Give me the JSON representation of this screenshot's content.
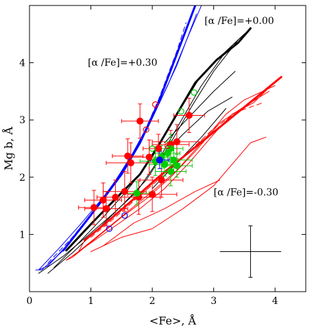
{
  "chart_data": {
    "type": "scatter",
    "title": "",
    "xlabel": "<Fe>, Å",
    "ylabel": "Mg b, Å",
    "xlim": [
      0,
      4.5
    ],
    "ylim": [
      0,
      5
    ],
    "xticks": [
      0,
      1,
      2,
      3,
      4
    ],
    "yticks": [
      1,
      2,
      3,
      4
    ],
    "xtick_labels": [
      "0",
      "1",
      "2",
      "3",
      "4"
    ],
    "ytick_labels": [
      "1",
      "2",
      "3",
      "4"
    ],
    "grid": false,
    "legend": "none",
    "annotations": [
      {
        "text": "[α /Fe]=+0.00",
        "x": 2.85,
        "y": 4.68
      },
      {
        "text": "[α /Fe]=+0.30",
        "x": 0.95,
        "y": 3.95
      },
      {
        "text": "[α /Fe]=-0.30",
        "x": 3.0,
        "y": 1.68
      }
    ],
    "typical_error": {
      "x": 3.6,
      "y": 0.7,
      "xerr": 0.5,
      "yerr": 0.45
    },
    "models": [
      {
        "group": "alpha_+0.30",
        "color": "#0000ff",
        "lines": [
          {
            "thick": true,
            "dash": false,
            "points": [
              [
                0.55,
                0.72
              ],
              [
                0.9,
                1.2
              ],
              [
                1.2,
                1.62
              ],
              [
                1.5,
                2.05
              ],
              [
                1.8,
                2.6
              ],
              [
                2.1,
                3.3
              ],
              [
                2.4,
                4.15
              ],
              [
                2.7,
                5.0
              ]
            ]
          },
          {
            "thick": false,
            "dash": false,
            "points": [
              [
                0.15,
                0.38
              ],
              [
                0.5,
                0.78
              ],
              [
                0.85,
                1.2
              ],
              [
                1.2,
                1.65
              ],
              [
                1.55,
                2.15
              ],
              [
                1.9,
                2.8
              ],
              [
                2.25,
                3.6
              ],
              [
                2.6,
                4.5
              ],
              [
                2.8,
                5.0
              ]
            ]
          },
          {
            "thick": false,
            "dash": false,
            "points": [
              [
                0.3,
                0.45
              ],
              [
                0.65,
                0.85
              ],
              [
                1.0,
                1.32
              ],
              [
                1.35,
                1.85
              ],
              [
                1.7,
                2.45
              ],
              [
                2.05,
                3.15
              ],
              [
                2.4,
                3.95
              ],
              [
                2.72,
                4.85
              ]
            ]
          },
          {
            "thick": false,
            "dash": false,
            "points": [
              [
                0.6,
                0.8
              ],
              [
                0.95,
                1.28
              ],
              [
                1.3,
                1.78
              ],
              [
                1.62,
                2.3
              ],
              [
                1.95,
                2.95
              ],
              [
                2.28,
                3.8
              ],
              [
                2.6,
                4.7
              ],
              [
                2.7,
                5.0
              ]
            ]
          },
          {
            "thick": false,
            "dash": true,
            "points": [
              [
                0.3,
                0.5
              ],
              [
                0.7,
                0.95
              ],
              [
                1.1,
                1.48
              ],
              [
                1.45,
                2.0
              ],
              [
                1.8,
                2.62
              ],
              [
                2.1,
                3.35
              ],
              [
                2.4,
                4.2
              ],
              [
                2.55,
                4.7
              ]
            ]
          },
          {
            "thick": false,
            "dash": false,
            "points": [
              [
                0.1,
                0.38
              ],
              [
                0.2,
                0.38
              ],
              [
                0.55,
                0.72
              ],
              [
                0.6,
                0.8
              ],
              [
                0.3,
                0.45
              ],
              [
                0.15,
                0.38
              ]
            ]
          }
        ]
      },
      {
        "group": "alpha_+0.00",
        "color": "#000000",
        "lines": [
          {
            "thick": true,
            "dash": false,
            "points": [
              [
                0.6,
                0.72
              ],
              [
                1.0,
                1.18
              ],
              [
                1.4,
                1.62
              ],
              [
                1.8,
                2.05
              ],
              [
                2.1,
                2.55
              ],
              [
                2.4,
                3.1
              ],
              [
                2.7,
                3.65
              ],
              [
                3.05,
                4.05
              ],
              [
                3.4,
                4.35
              ],
              [
                3.6,
                4.6
              ]
            ]
          },
          {
            "thick": false,
            "dash": false,
            "points": [
              [
                0.15,
                0.32
              ],
              [
                0.55,
                0.62
              ],
              [
                0.95,
                0.98
              ],
              [
                1.35,
                1.35
              ],
              [
                1.75,
                1.75
              ],
              [
                2.1,
                2.3
              ],
              [
                2.45,
                2.95
              ],
              [
                2.8,
                3.6
              ],
              [
                3.2,
                4.2
              ],
              [
                3.6,
                4.6
              ]
            ]
          },
          {
            "thick": false,
            "dash": false,
            "points": [
              [
                0.3,
                0.32
              ],
              [
                0.7,
                0.68
              ],
              [
                1.1,
                1.08
              ],
              [
                1.5,
                1.5
              ],
              [
                1.9,
                1.95
              ],
              [
                2.3,
                2.6
              ],
              [
                2.65,
                3.25
              ],
              [
                3.0,
                3.85
              ],
              [
                3.4,
                4.4
              ]
            ]
          },
          {
            "thick": false,
            "dash": false,
            "points": [
              [
                0.4,
                0.42
              ],
              [
                0.8,
                0.85
              ],
              [
                1.2,
                1.3
              ],
              [
                1.6,
                1.78
              ],
              [
                2.0,
                2.35
              ],
              [
                2.35,
                3.0
              ],
              [
                2.75,
                3.7
              ],
              [
                3.1,
                4.1
              ],
              [
                3.5,
                4.5
              ]
            ]
          },
          {
            "thick": false,
            "dash": false,
            "points": [
              [
                2.0,
                1.8
              ],
              [
                2.4,
                2.25
              ],
              [
                2.8,
                2.7
              ],
              [
                3.2,
                3.2
              ]
            ]
          },
          {
            "thick": false,
            "dash": false,
            "points": [
              [
                2.1,
                2.3
              ],
              [
                2.5,
                2.75
              ],
              [
                2.9,
                3.15
              ],
              [
                3.3,
                3.4
              ]
            ]
          },
          {
            "thick": false,
            "dash": false,
            "points": [
              [
                2.2,
                2.6
              ],
              [
                2.6,
                3.05
              ],
              [
                3.0,
                3.5
              ],
              [
                3.35,
                3.85
              ]
            ]
          }
        ]
      },
      {
        "group": "alpha_-0.30",
        "color": "#ff0000",
        "lines": [
          {
            "thick": true,
            "dash": false,
            "points": [
              [
                0.9,
                0.9
              ],
              [
                1.3,
                1.25
              ],
              [
                1.7,
                1.62
              ],
              [
                2.1,
                2.0
              ],
              [
                2.5,
                2.35
              ],
              [
                2.9,
                2.7
              ],
              [
                3.3,
                3.05
              ],
              [
                3.7,
                3.4
              ],
              [
                4.1,
                3.75
              ]
            ]
          },
          {
            "thick": false,
            "dash": false,
            "points": [
              [
                0.6,
                0.55
              ],
              [
                1.0,
                0.85
              ],
              [
                1.4,
                1.15
              ],
              [
                1.8,
                1.45
              ],
              [
                2.2,
                1.8
              ],
              [
                2.6,
                2.25
              ],
              [
                3.0,
                2.75
              ],
              [
                3.3,
                3.1
              ],
              [
                3.65,
                3.3
              ],
              [
                4.05,
                3.72
              ]
            ]
          },
          {
            "thick": false,
            "dash": false,
            "points": [
              [
                0.7,
                0.6
              ],
              [
                1.1,
                0.95
              ],
              [
                1.5,
                1.3
              ],
              [
                1.9,
                1.62
              ],
              [
                2.3,
                2.0
              ],
              [
                2.7,
                2.45
              ],
              [
                3.1,
                2.95
              ],
              [
                3.45,
                3.2
              ],
              [
                3.9,
                3.5
              ]
            ]
          },
          {
            "thick": false,
            "dash": false,
            "points": [
              [
                0.8,
                0.7
              ],
              [
                1.2,
                1.05
              ],
              [
                1.6,
                1.4
              ],
              [
                2.0,
                1.75
              ],
              [
                2.4,
                2.12
              ],
              [
                2.8,
                2.6
              ],
              [
                3.2,
                3.1
              ],
              [
                3.5,
                3.35
              ],
              [
                4.0,
                3.6
              ]
            ]
          },
          {
            "thick": false,
            "dash": true,
            "points": [
              [
                1.0,
                0.95
              ],
              [
                1.4,
                1.3
              ],
              [
                1.8,
                1.68
              ],
              [
                2.2,
                2.05
              ],
              [
                2.6,
                2.45
              ],
              [
                3.0,
                2.85
              ],
              [
                3.4,
                3.15
              ],
              [
                3.8,
                3.3
              ]
            ]
          },
          {
            "thick": false,
            "dash": false,
            "points": [
              [
                1.0,
                0.7
              ],
              [
                1.5,
                0.95
              ],
              [
                2.0,
                1.1
              ],
              [
                2.5,
                1.45
              ],
              [
                3.0,
                1.85
              ],
              [
                3.6,
                2.6
              ],
              [
                3.85,
                2.7
              ]
            ]
          },
          {
            "thick": false,
            "dash": false,
            "points": [
              [
                1.2,
                0.8
              ],
              [
                1.7,
                1.2
              ],
              [
                2.2,
                1.45
              ],
              [
                2.7,
                1.75
              ],
              [
                3.1,
                1.95
              ]
            ]
          },
          {
            "thick": false,
            "dash": false,
            "points": [
              [
                0.6,
                0.55
              ],
              [
                0.7,
                0.6
              ],
              [
                0.8,
                0.7
              ],
              [
                0.9,
                0.9
              ]
            ]
          }
        ]
      }
    ],
    "series": [
      {
        "name": "",
        "color": "#ff0000",
        "marker": "filled-circle",
        "points": [
          {
            "x": 1.05,
            "y": 1.47,
            "xerr": 0.25,
            "yerr": 0.3
          },
          {
            "x": 1.25,
            "y": 1.45,
            "xerr": 0.35,
            "yerr": 0.3
          },
          {
            "x": 1.4,
            "y": 1.65,
            "xerr": 0.3,
            "yerr": 0.3
          },
          {
            "x": 1.55,
            "y": 1.75,
            "xerr": 0.35,
            "yerr": 0.35
          },
          {
            "x": 1.6,
            "y": 2.37,
            "xerr": 0.25,
            "yerr": 0.3
          },
          {
            "x": 1.65,
            "y": 2.25,
            "xerr": 0.4,
            "yerr": 0.35
          },
          {
            "x": 1.8,
            "y": 2.98,
            "xerr": 0.3,
            "yerr": 0.3
          },
          {
            "x": 1.78,
            "y": 1.65,
            "xerr": 0.35,
            "yerr": 0.3
          },
          {
            "x": 1.95,
            "y": 2.35,
            "xerr": 0.3,
            "yerr": 0.3
          },
          {
            "x": 2.0,
            "y": 1.7,
            "xerr": 0.4,
            "yerr": 0.3
          },
          {
            "x": 2.1,
            "y": 2.5,
            "xerr": 0.25,
            "yerr": 0.25
          },
          {
            "x": 2.15,
            "y": 1.95,
            "xerr": 0.35,
            "yerr": 0.3
          },
          {
            "x": 2.3,
            "y": 2.57,
            "xerr": 0.3,
            "yerr": 0.25
          },
          {
            "x": 2.4,
            "y": 2.62,
            "xerr": 0.4,
            "yerr": 0.3
          },
          {
            "x": 2.6,
            "y": 3.08,
            "xerr": 0.25,
            "yerr": 0.3
          },
          {
            "x": 1.2,
            "y": 1.6,
            "xerr": 0.3,
            "yerr": 0.3
          }
        ]
      },
      {
        "name": "",
        "color": "#00cc00",
        "marker": "filled-circle",
        "points": [
          {
            "x": 1.75,
            "y": 1.72,
            "xerr": 0.2,
            "yerr": 0.2
          },
          {
            "x": 2.05,
            "y": 2.28,
            "xerr": 0.25,
            "yerr": 0.25
          },
          {
            "x": 2.15,
            "y": 2.35,
            "xerr": 0.2,
            "yerr": 0.2
          },
          {
            "x": 2.2,
            "y": 2.22,
            "xerr": 0.25,
            "yerr": 0.2
          },
          {
            "x": 2.25,
            "y": 2.42,
            "xerr": 0.2,
            "yerr": 0.2
          },
          {
            "x": 2.3,
            "y": 2.1,
            "xerr": 0.25,
            "yerr": 0.25
          },
          {
            "x": 2.35,
            "y": 2.3,
            "xerr": 0.3,
            "yerr": 0.2
          },
          {
            "x": 2.3,
            "y": 2.5,
            "xerr": 0.2,
            "yerr": 0.25
          },
          {
            "x": 2.4,
            "y": 2.2,
            "xerr": 0.25,
            "yerr": 0.2
          }
        ]
      },
      {
        "name": "",
        "color": "#0000ff",
        "marker": "filled-circle",
        "points": [
          {
            "x": 2.12,
            "y": 2.3,
            "xerr": 0.15,
            "yerr": 0.15
          }
        ]
      },
      {
        "name": "",
        "color": "#ff0000",
        "marker": "open-circle",
        "points": [
          {
            "x": 2.05,
            "y": 3.27
          },
          {
            "x": 1.9,
            "y": 2.83
          },
          {
            "x": 2.25,
            "y": 2.55
          }
        ]
      },
      {
        "name": "",
        "color": "#00cc00",
        "marker": "open-circle",
        "points": [
          {
            "x": 2.68,
            "y": 3.48
          },
          {
            "x": 2.47,
            "y": 3.15
          },
          {
            "x": 2.0,
            "y": 2.5
          }
        ]
      },
      {
        "name": "",
        "color": "#0000ff",
        "marker": "open-circle",
        "points": [
          {
            "x": 1.3,
            "y": 1.1
          },
          {
            "x": 1.55,
            "y": 1.33
          }
        ]
      }
    ]
  }
}
